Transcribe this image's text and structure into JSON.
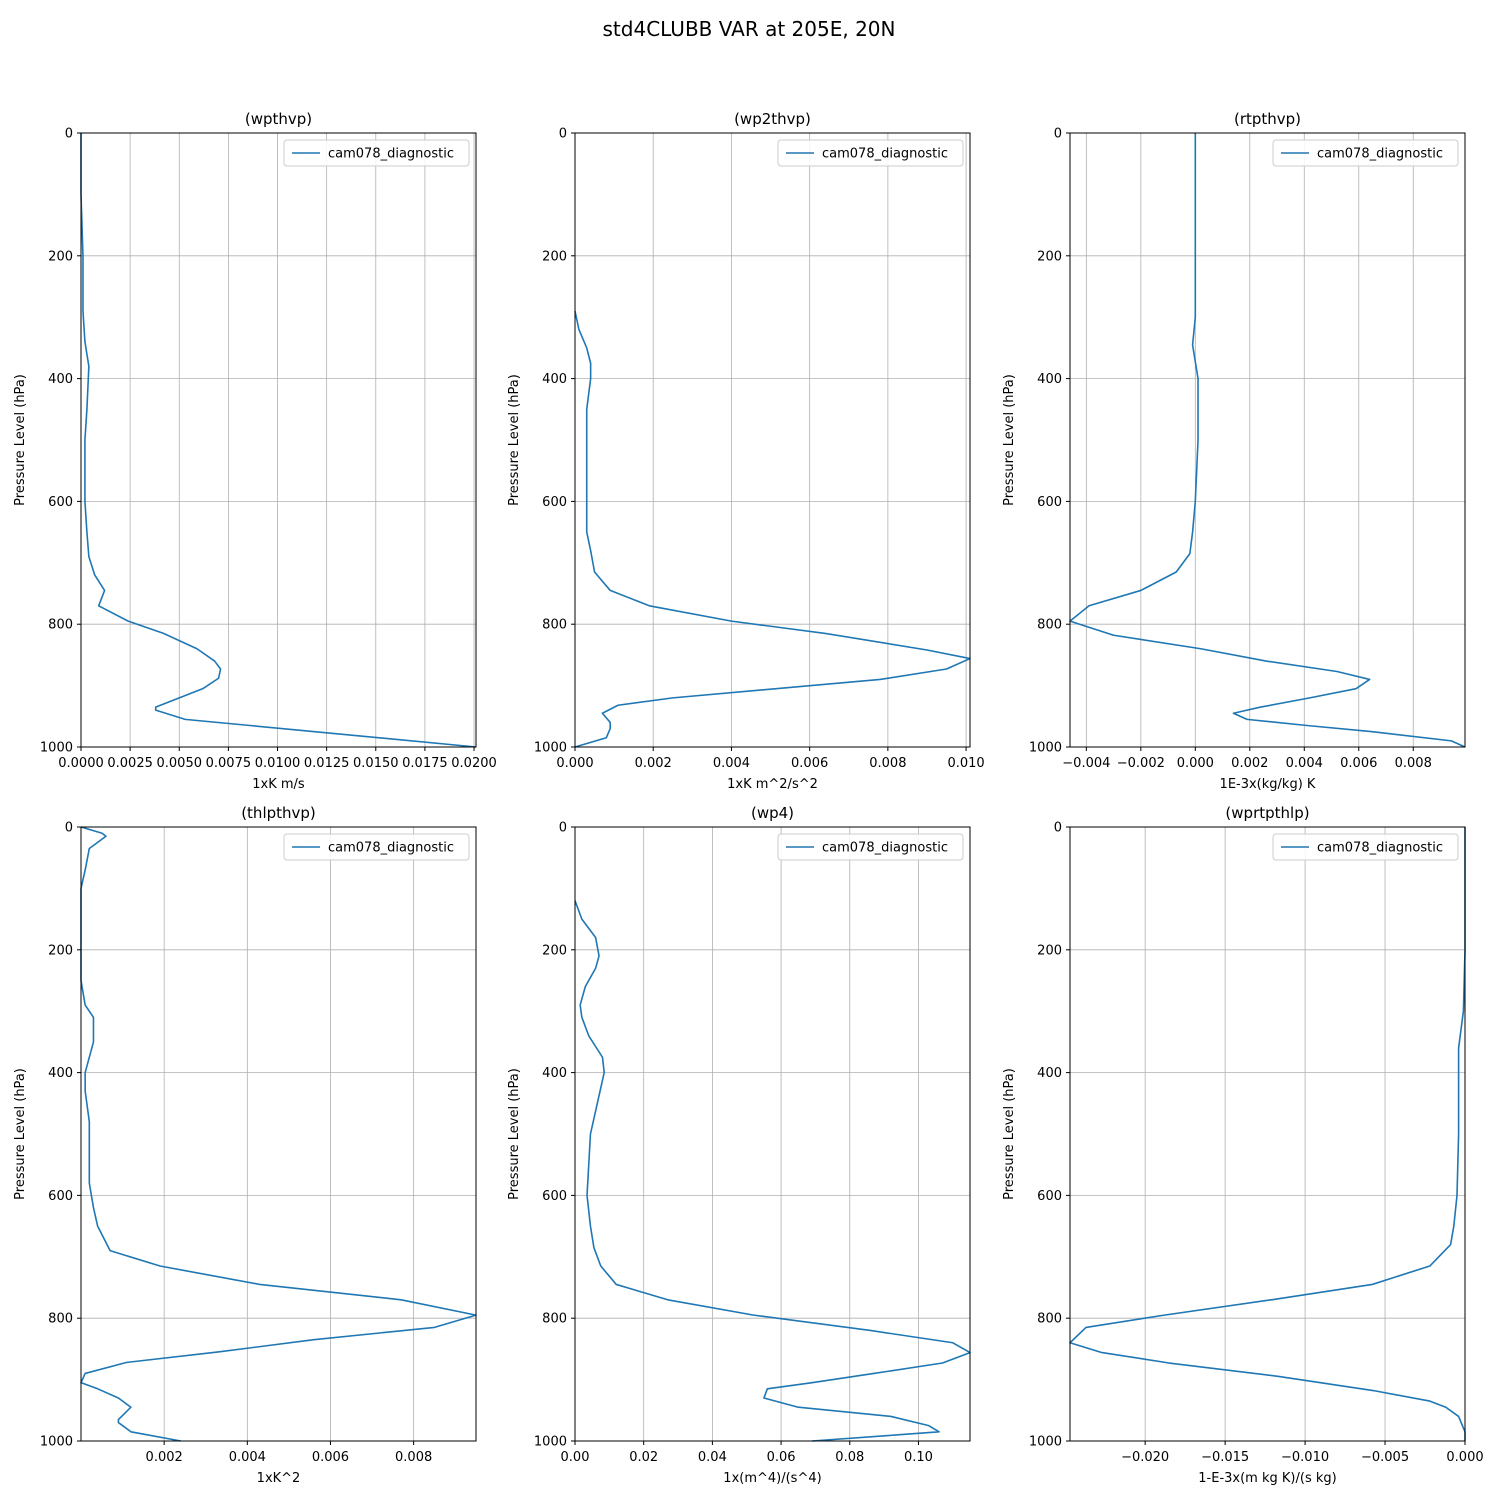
{
  "figure_title": "std4CLUBB VAR at 205E, 20N",
  "colors": {
    "series": "#1f77b4",
    "grid": "#b0b0b0",
    "axis": "#000000"
  },
  "chart_data": [
    {
      "type": "line",
      "title": "(wpthvp)",
      "xlabel": "1xK m/s",
      "ylabel": "Pressure Level (hPa)",
      "xlim": [
        0,
        0.0201
      ],
      "ylim": [
        1000,
        0
      ],
      "y_inverted": true,
      "grid": true,
      "legend": "top-right",
      "xticks": [
        0,
        0.0025,
        0.005,
        0.0075,
        0.01,
        0.0125,
        0.015,
        0.0175,
        0.02
      ],
      "xtick_labels": [
        "0.0000",
        "0.0025",
        "0.0050",
        "0.0075",
        "0.0100",
        "0.0125",
        "0.0150",
        "0.0175",
        "0.0200"
      ],
      "yticks": [
        0,
        200,
        400,
        600,
        800,
        1000
      ],
      "series": [
        {
          "name": "cam078_diagnostic",
          "points": [
            [
              0,
              0
            ],
            [
              0,
              100
            ],
            [
              0.0001,
              200
            ],
            [
              0.0001,
              250
            ],
            [
              0.0001,
              290
            ],
            [
              0.0002,
              340
            ],
            [
              0.0004,
              380
            ],
            [
              0.0003,
              450
            ],
            [
              0.0002,
              500
            ],
            [
              0.0002,
              600
            ],
            [
              0.0003,
              650
            ],
            [
              0.0004,
              690
            ],
            [
              0.0007,
              720
            ],
            [
              0.0012,
              745
            ],
            [
              0.0009,
              770
            ],
            [
              0.0024,
              795
            ],
            [
              0.0042,
              815
            ],
            [
              0.0059,
              840
            ],
            [
              0.0068,
              860
            ],
            [
              0.0071,
              873
            ],
            [
              0.007,
              888
            ],
            [
              0.0062,
              905
            ],
            [
              0.0038,
              935
            ],
            [
              0.0038,
              940
            ],
            [
              0.0053,
              955
            ],
            [
              0.0086,
              965
            ],
            [
              0.0201,
              1000
            ]
          ]
        }
      ]
    },
    {
      "type": "line",
      "title": "(wp2thvp)",
      "xlabel": "1xK m^2/s^2",
      "ylabel": "Pressure Level (hPa)",
      "xlim": [
        0,
        0.0101
      ],
      "ylim": [
        1000,
        0
      ],
      "y_inverted": true,
      "grid": true,
      "legend": "top-right",
      "xticks": [
        0,
        0.002,
        0.004,
        0.006,
        0.008,
        0.01
      ],
      "xtick_labels": [
        "0.000",
        "0.002",
        "0.004",
        "0.006",
        "0.008",
        "0.010"
      ],
      "yticks": [
        0,
        200,
        400,
        600,
        800,
        1000
      ],
      "series": [
        {
          "name": "cam078_diagnostic",
          "points": [
            [
              0,
              290
            ],
            [
              0.0001,
              320
            ],
            [
              0.0003,
              350
            ],
            [
              0.0004,
              375
            ],
            [
              0.0004,
              400
            ],
            [
              0.0003,
              450
            ],
            [
              0.0003,
              500
            ],
            [
              0.0003,
              600
            ],
            [
              0.0003,
              650
            ],
            [
              0.0004,
              680
            ],
            [
              0.0005,
              715
            ],
            [
              0.0009,
              745
            ],
            [
              0.0019,
              770
            ],
            [
              0.004,
              795
            ],
            [
              0.0064,
              815
            ],
            [
              0.009,
              842
            ],
            [
              0.0101,
              856
            ],
            [
              0.0095,
              873
            ],
            [
              0.0078,
              890
            ],
            [
              0.0025,
              920
            ],
            [
              0.0011,
              932
            ],
            [
              0.0007,
              945
            ],
            [
              0.0009,
              960
            ],
            [
              0.0009,
              970
            ],
            [
              0.0008,
              985
            ],
            [
              0,
              1000
            ]
          ]
        }
      ]
    },
    {
      "type": "line",
      "title": "(rtpthvp)",
      "xlabel": "1E-3x(kg/kg) K",
      "ylabel": "Pressure Level (hPa)",
      "xlim": [
        -0.0046,
        0.0099
      ],
      "ylim": [
        1000,
        0
      ],
      "y_inverted": true,
      "grid": true,
      "legend": "top-right",
      "xticks": [
        -0.004,
        -0.002,
        0,
        0.002,
        0.004,
        0.006,
        0.008
      ],
      "xtick_labels": [
        "−0.004",
        "−0.002",
        "0.000",
        "0.002",
        "0.004",
        "0.006",
        "0.008"
      ],
      "yticks": [
        0,
        200,
        400,
        600,
        800,
        1000
      ],
      "series": [
        {
          "name": "cam078_diagnostic",
          "points": [
            [
              0,
              0
            ],
            [
              0,
              100
            ],
            [
              0,
              200
            ],
            [
              0,
              300
            ],
            [
              -0.0001,
              345
            ],
            [
              0.0001,
              400
            ],
            [
              0.0001,
              500
            ],
            [
              0,
              600
            ],
            [
              -0.0001,
              650
            ],
            [
              -0.0002,
              685
            ],
            [
              -0.0007,
              715
            ],
            [
              -0.002,
              745
            ],
            [
              -0.0039,
              770
            ],
            [
              -0.0046,
              795
            ],
            [
              -0.003,
              818
            ],
            [
              0.0002,
              840
            ],
            [
              0.0026,
              860
            ],
            [
              0.0052,
              877
            ],
            [
              0.0064,
              890
            ],
            [
              0.0059,
              905
            ],
            [
              0.0042,
              920
            ],
            [
              0.0024,
              935
            ],
            [
              0.0014,
              945
            ],
            [
              0.0019,
              955
            ],
            [
              0.0041,
              965
            ],
            [
              0.0065,
              975
            ],
            [
              0.0094,
              990
            ],
            [
              0.0099,
              1000
            ]
          ]
        }
      ]
    },
    {
      "type": "line",
      "title": "(thlpthvp)",
      "xlabel": "1xK^2",
      "ylabel": "Pressure Level (hPa)",
      "xlim": [
        0,
        0.0095
      ],
      "ylim": [
        1000,
        0
      ],
      "y_inverted": true,
      "grid": true,
      "legend": "top-right",
      "xticks": [
        0.002,
        0.004,
        0.006,
        0.008
      ],
      "xtick_labels": [
        "0.002",
        "0.004",
        "0.006",
        "0.008"
      ],
      "yticks": [
        0,
        200,
        400,
        600,
        800,
        1000
      ],
      "series": [
        {
          "name": "cam078_diagnostic",
          "points": [
            [
              0,
              0
            ],
            [
              0.0005,
              10
            ],
            [
              0.0006,
              15
            ],
            [
              0.0002,
              35
            ],
            [
              0.0001,
              70
            ],
            [
              0,
              100
            ],
            [
              0,
              150
            ],
            [
              0,
              200
            ],
            [
              0,
              250
            ],
            [
              0.0001,
              290
            ],
            [
              0.0003,
              310
            ],
            [
              0.0003,
              350
            ],
            [
              0.0001,
              400
            ],
            [
              0.0001,
              430
            ],
            [
              0.0002,
              480
            ],
            [
              0.0002,
              500
            ],
            [
              0.0002,
              580
            ],
            [
              0.0003,
              620
            ],
            [
              0.0004,
              650
            ],
            [
              0.0007,
              690
            ],
            [
              0.0019,
              715
            ],
            [
              0.0043,
              745
            ],
            [
              0.0077,
              770
            ],
            [
              0.0095,
              795
            ],
            [
              0.0085,
              815
            ],
            [
              0.0056,
              835
            ],
            [
              0.0033,
              855
            ],
            [
              0.0011,
              872
            ],
            [
              0.0001,
              890
            ],
            [
              0,
              905
            ],
            [
              0.0004,
              915
            ],
            [
              0.0009,
              930
            ],
            [
              0.0012,
              945
            ],
            [
              0.0009,
              965
            ],
            [
              0.0009,
              970
            ],
            [
              0.0012,
              985
            ],
            [
              0.0024,
              1000
            ]
          ]
        }
      ]
    },
    {
      "type": "line",
      "title": "(wp4)",
      "xlabel": "1x(m^4)/(s^4)",
      "ylabel": "Pressure Level (hPa)",
      "xlim": [
        0,
        0.115
      ],
      "ylim": [
        1000,
        0
      ],
      "y_inverted": true,
      "grid": true,
      "legend": "top-right",
      "xticks": [
        0,
        0.02,
        0.04,
        0.06,
        0.08,
        0.1
      ],
      "xtick_labels": [
        "0.00",
        "0.02",
        "0.04",
        "0.06",
        "0.08",
        "0.10"
      ],
      "yticks": [
        0,
        200,
        400,
        600,
        800,
        1000
      ],
      "series": [
        {
          "name": "cam078_diagnostic",
          "points": [
            [
              0,
              120
            ],
            [
              0.002,
              150
            ],
            [
              0.006,
              180
            ],
            [
              0.007,
              210
            ],
            [
              0.006,
              230
            ],
            [
              0.003,
              260
            ],
            [
              0.0015,
              290
            ],
            [
              0.002,
              310
            ],
            [
              0.004,
              340
            ],
            [
              0.008,
              375
            ],
            [
              0.0085,
              400
            ],
            [
              0.0065,
              450
            ],
            [
              0.0045,
              500
            ],
            [
              0.0035,
              600
            ],
            [
              0.0045,
              650
            ],
            [
              0.0055,
              685
            ],
            [
              0.0075,
              715
            ],
            [
              0.012,
              745
            ],
            [
              0.027,
              770
            ],
            [
              0.052,
              795
            ],
            [
              0.086,
              820
            ],
            [
              0.11,
              840
            ],
            [
              0.115,
              856
            ],
            [
              0.107,
              873
            ],
            [
              0.087,
              890
            ],
            [
              0.069,
              905
            ],
            [
              0.056,
              915
            ],
            [
              0.055,
              930
            ],
            [
              0.065,
              945
            ],
            [
              0.092,
              960
            ],
            [
              0.103,
              975
            ],
            [
              0.106,
              985
            ],
            [
              0.094,
              990
            ],
            [
              0.069,
              1000
            ]
          ]
        }
      ]
    },
    {
      "type": "line",
      "title": "(wprtpthlp)",
      "xlabel": "1-E-3x(m kg K)/(s kg)",
      "ylabel": "Pressure Level (hPa)",
      "xlim": [
        -0.0247,
        0
      ],
      "ylim": [
        1000,
        0
      ],
      "y_inverted": true,
      "grid": true,
      "legend": "top-right",
      "xticks": [
        -0.02,
        -0.015,
        -0.01,
        -0.005,
        0
      ],
      "xtick_labels": [
        "−0.020",
        "−0.015",
        "−0.010",
        "−0.005",
        "0.000"
      ],
      "yticks": [
        0,
        200,
        400,
        600,
        800,
        1000
      ],
      "series": [
        {
          "name": "cam078_diagnostic",
          "points": [
            [
              0,
              0
            ],
            [
              0,
              100
            ],
            [
              0,
              200
            ],
            [
              -0.0001,
              300
            ],
            [
              -0.0004,
              360
            ],
            [
              -0.0004,
              400
            ],
            [
              -0.0004,
              500
            ],
            [
              -0.0005,
              600
            ],
            [
              -0.0007,
              650
            ],
            [
              -0.0009,
              680
            ],
            [
              -0.0022,
              715
            ],
            [
              -0.0058,
              745
            ],
            [
              -0.0121,
              770
            ],
            [
              -0.0188,
              795
            ],
            [
              -0.0237,
              815
            ],
            [
              -0.0247,
              840
            ],
            [
              -0.0227,
              856
            ],
            [
              -0.0185,
              873
            ],
            [
              -0.0116,
              895
            ],
            [
              -0.0057,
              918
            ],
            [
              -0.0022,
              935
            ],
            [
              -0.0012,
              945
            ],
            [
              -0.0004,
              960
            ],
            [
              0,
              985
            ],
            [
              0,
              1000
            ]
          ]
        }
      ]
    }
  ]
}
